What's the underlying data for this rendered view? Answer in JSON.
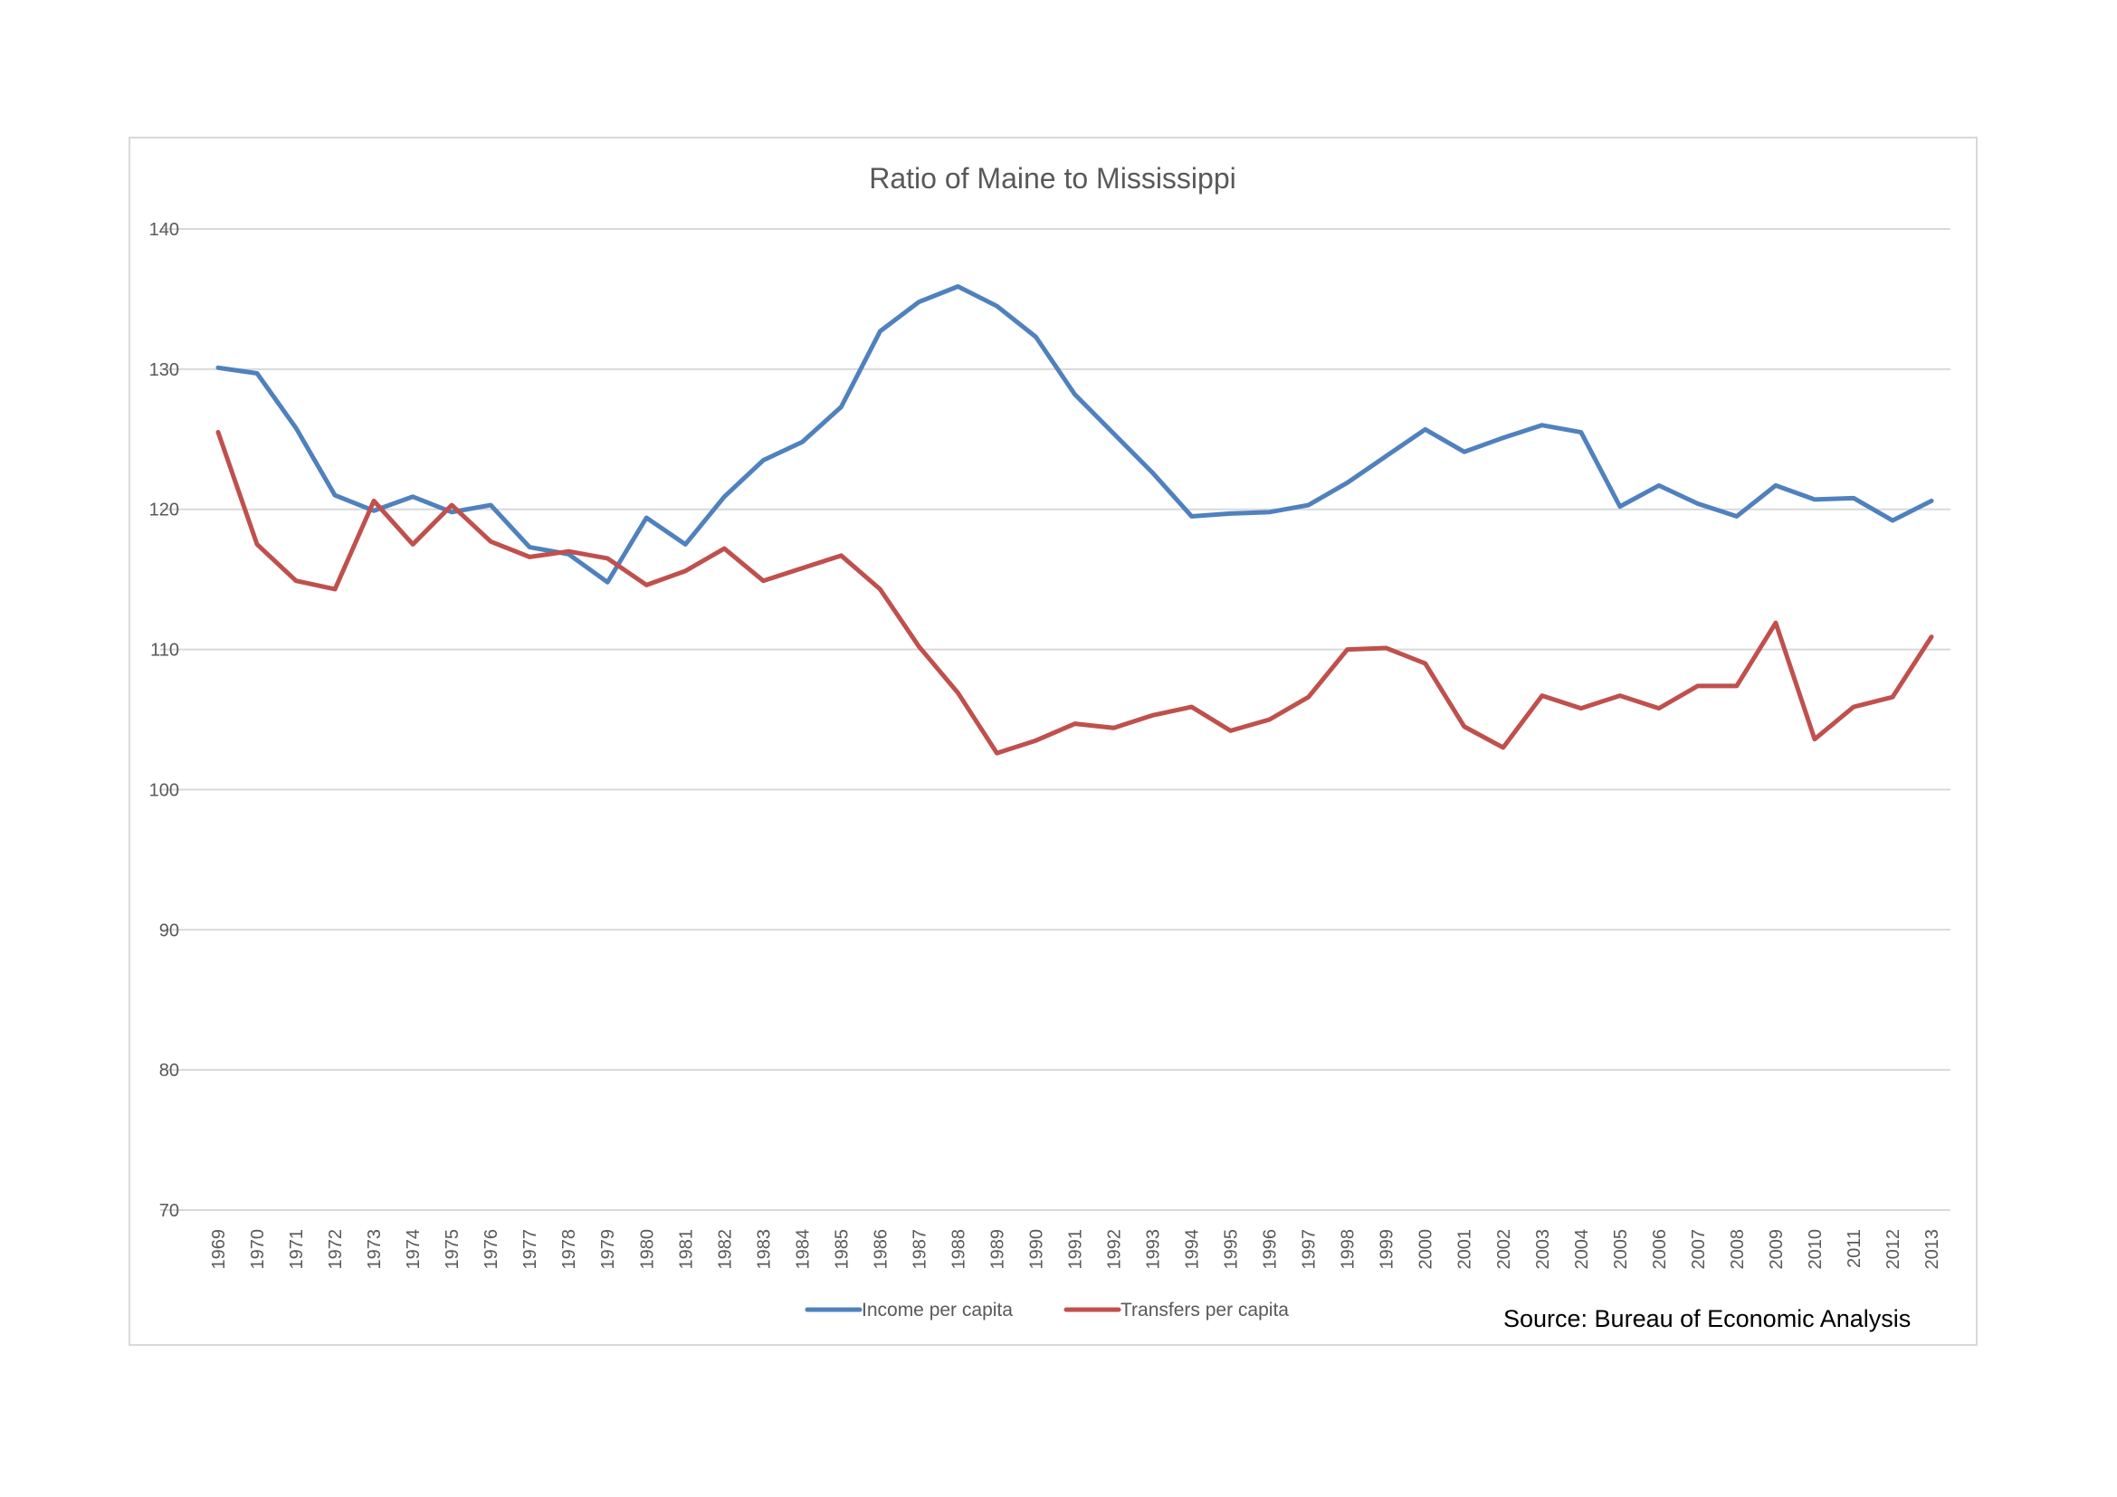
{
  "chart_data": {
    "type": "line",
    "title": "Ratio of Maine to Mississippi",
    "xlabel": "",
    "ylabel": "",
    "ylim": [
      70,
      140
    ],
    "yticks": [
      "70",
      "80",
      "90",
      "100",
      "110",
      "120",
      "130",
      "140"
    ],
    "grid": true,
    "legend_position": "bottom",
    "x": [
      "1969",
      "1970",
      "1971",
      "1972",
      "1973",
      "1974",
      "1975",
      "1976",
      "1977",
      "1978",
      "1979",
      "1980",
      "1981",
      "1982",
      "1983",
      "1984",
      "1985",
      "1986",
      "1987",
      "1988",
      "1989",
      "1990",
      "1991",
      "1992",
      "1993",
      "1994",
      "1995",
      "1996",
      "1997",
      "1998",
      "1999",
      "2000",
      "2001",
      "2002",
      "2003",
      "2004",
      "2005",
      "2006",
      "2007",
      "2008",
      "2009",
      "2010",
      "2011",
      "2012",
      "2013"
    ],
    "series": [
      {
        "name": "Income per capita",
        "color": "#4f81bd",
        "values": [
          130.1,
          129.7,
          125.8,
          121.0,
          119.9,
          120.9,
          119.8,
          120.3,
          117.3,
          116.8,
          114.8,
          119.4,
          117.5,
          120.9,
          123.5,
          124.8,
          127.3,
          132.7,
          134.8,
          135.9,
          134.5,
          132.3,
          128.2,
          125.4,
          122.6,
          119.5,
          119.7,
          119.8,
          120.3,
          121.9,
          123.8,
          125.7,
          124.1,
          125.1,
          126.0,
          125.5,
          120.2,
          121.7,
          120.4,
          119.5,
          121.7,
          120.7,
          120.8,
          119.2,
          120.6
        ]
      },
      {
        "name": "Transfers per capita",
        "color": "#c0504d",
        "values": [
          125.5,
          117.5,
          114.9,
          114.3,
          120.6,
          117.5,
          120.3,
          117.7,
          116.6,
          117.0,
          116.5,
          114.6,
          115.6,
          117.2,
          114.9,
          115.8,
          116.7,
          114.3,
          110.2,
          106.9,
          102.6,
          103.5,
          104.7,
          104.4,
          105.3,
          105.9,
          104.2,
          105.0,
          106.6,
          110.0,
          110.1,
          109.0,
          104.5,
          103.0,
          106.7,
          105.8,
          106.7,
          105.8,
          107.4,
          107.4,
          111.9,
          103.6,
          105.9,
          106.6,
          110.9
        ]
      }
    ],
    "annotations": [
      "Source: Bureau of Economic Analysis"
    ]
  }
}
